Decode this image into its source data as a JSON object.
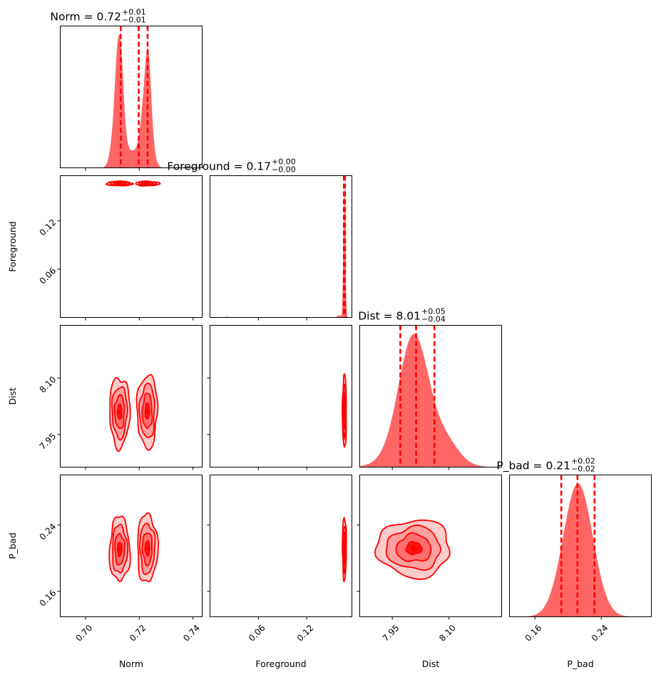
{
  "chart_data": {
    "type": "corner",
    "color": "#ff0000",
    "hist_fill": "#ff6666",
    "parameters": [
      {
        "name": "Norm",
        "range": [
          0.6906,
          0.7434
        ],
        "ticks": [
          0.7,
          0.72,
          0.74
        ],
        "tick_labels": [
          "0.70",
          "0.72",
          "0.74"
        ],
        "title_prefix": "Norm = 0.72",
        "err_plus": "+0.01",
        "err_minus": "−0.01",
        "quantiles": [
          0.7131,
          0.7198,
          0.7231
        ]
      },
      {
        "name": "Foreground",
        "range": [
          0.0,
          0.176
        ],
        "ticks": [
          0.06,
          0.12
        ],
        "tick_labels": [
          "0.06",
          "0.12"
        ],
        "title_prefix": "Foreground = 0.17",
        "err_plus": "+0.00",
        "err_minus": "−0.00",
        "quantiles": [
          0.1661,
          0.1668,
          0.1675
        ]
      },
      {
        "name": "Dist",
        "range": [
          7.8639,
          8.2391
        ],
        "ticks": [
          7.95,
          8.1
        ],
        "tick_labels": [
          "7.95",
          "8.10"
        ],
        "title_prefix": "Dist = 8.01",
        "err_plus": "+0.05",
        "err_minus": "−0.04",
        "quantiles": [
          7.9713,
          8.0129,
          8.0614
        ]
      },
      {
        "name": "P_bad",
        "range": [
          0.1294,
          0.3004
        ],
        "ticks": [
          0.16,
          0.24
        ],
        "tick_labels": [
          "0.16",
          "0.24"
        ],
        "title_prefix": "P_bad = 0.21",
        "err_plus": "+0.02",
        "err_minus": "−0.02",
        "quantiles": [
          0.1918,
          0.2113,
          0.2319
        ]
      }
    ],
    "marginals": [
      {
        "param": "Norm",
        "components": [
          {
            "mu": 0.7117,
            "sigma": 0.0008,
            "amp": 0.22
          },
          {
            "mu": 0.7123,
            "sigma": 0.0018,
            "amp": 0.8
          },
          {
            "mu": 0.7132,
            "sigma": 0.0009,
            "amp": 0.35
          },
          {
            "mu": 0.7175,
            "sigma": 0.002,
            "amp": 0.13
          },
          {
            "mu": 0.7226,
            "sigma": 0.0018,
            "amp": 0.72
          },
          {
            "mu": 0.7234,
            "sigma": 0.001,
            "amp": 0.4
          }
        ]
      },
      {
        "param": "Foreground",
        "components": [
          {
            "mu": 0.1666,
            "sigma": 0.0012,
            "amp": 1.0
          },
          {
            "mu": 0.16,
            "sigma": 0.0025,
            "amp": 0.015
          },
          {
            "mu": 0.021,
            "sigma": 0.002,
            "amp": 0.006
          }
        ]
      },
      {
        "param": "Dist",
        "components": [
          {
            "mu": 8.005,
            "sigma": 0.038,
            "amp": 0.92
          },
          {
            "mu": 8.025,
            "sigma": 0.06,
            "amp": 0.32
          },
          {
            "mu": 8.1,
            "sigma": 0.03,
            "amp": 0.1
          }
        ]
      },
      {
        "param": "P_bad",
        "components": [
          {
            "mu": 0.212,
            "sigma": 0.0178,
            "amp": 1.0
          }
        ]
      }
    ],
    "contour_blobs": [
      {
        "row": "Foreground",
        "col": "Norm",
        "x": 0.7126,
        "y": 0.1662,
        "sx": 0.0023,
        "sy": 0.00135
      },
      {
        "row": "Foreground",
        "col": "Norm",
        "x": 0.723,
        "y": 0.1662,
        "sx": 0.00215,
        "sy": 0.00135
      },
      {
        "row": "Dist",
        "col": "Norm",
        "x": 0.7127,
        "y": 8.01,
        "sx": 0.0018,
        "sy": 0.044
      },
      {
        "row": "Dist",
        "col": "Norm",
        "x": 0.723,
        "y": 8.012,
        "sx": 0.0018,
        "sy": 0.046
      },
      {
        "row": "Dist",
        "col": "Foreground",
        "x": 0.1667,
        "y": 8.011,
        "sx": 0.00115,
        "sy": 0.046
      },
      {
        "row": "P_bad",
        "col": "Norm",
        "x": 0.7127,
        "y": 0.211,
        "sx": 0.0018,
        "sy": 0.0185
      },
      {
        "row": "P_bad",
        "col": "Norm",
        "x": 0.723,
        "y": 0.212,
        "sx": 0.0018,
        "sy": 0.0195
      },
      {
        "row": "P_bad",
        "col": "Foreground",
        "x": 0.1667,
        "y": 0.212,
        "sx": 0.00115,
        "sy": 0.018
      },
      {
        "row": "P_bad",
        "col": "Dist",
        "x": 8.007,
        "y": 0.212,
        "sx": 0.046,
        "sy": 0.0165
      }
    ]
  }
}
